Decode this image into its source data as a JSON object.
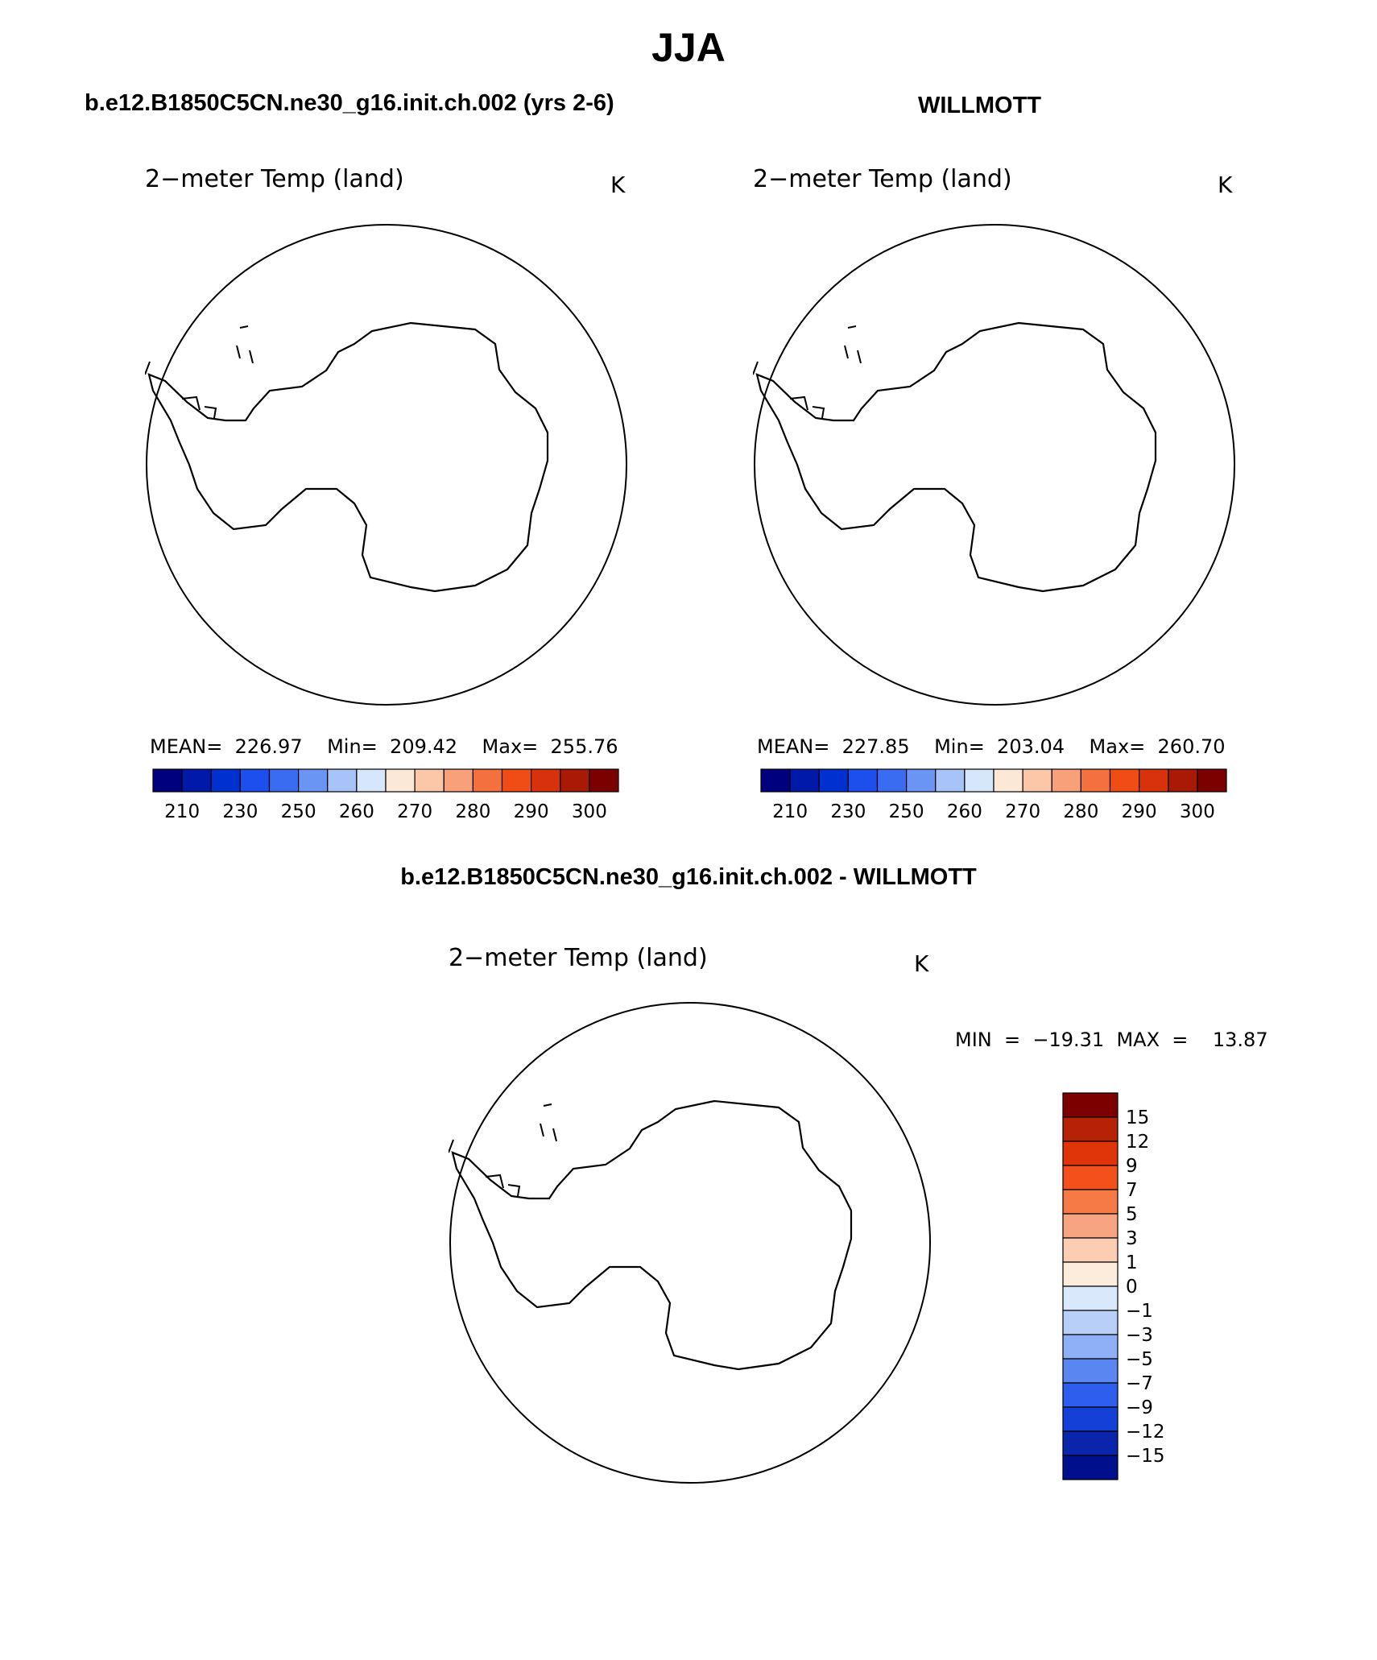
{
  "header": {
    "title": "JJA",
    "case_title": "b.e12.B1850C5CN.ne30_g16.init.ch.002 (yrs 2-6)",
    "obs_title": "WILLMOTT",
    "diff_title": "b.e12.B1850C5CN.ne30_g16.init.ch.002 - WILLMOTT"
  },
  "panels": {
    "model": {
      "plot_title": "2−meter Temp (land)",
      "units": "K",
      "stats": "MEAN=  226.97    Min=  209.42    Max=  255.76"
    },
    "obs": {
      "plot_title": "2−meter Temp (land)",
      "units": "K",
      "stats": "MEAN=  227.85    Min=  203.04    Max=  260.70"
    },
    "diff": {
      "plot_title": "2−meter Temp (land)",
      "units": "K",
      "stats": "MIN  =  −19.31  MAX  =    13.87"
    }
  },
  "colorbars": {
    "abs": {
      "colors": [
        "#00007f",
        "#0019a8",
        "#0030d0",
        "#1c4fec",
        "#3a6cf2",
        "#6b95f5",
        "#a8c3f7",
        "#d6e6fb",
        "#fce8d6",
        "#fbc7a8",
        "#f8a07a",
        "#f5703f",
        "#f04c16",
        "#d8320c",
        "#a81a06",
        "#7c0000"
      ],
      "labels": [
        "210",
        "230",
        "250",
        "260",
        "270",
        "280",
        "290",
        "300"
      ]
    },
    "diff": {
      "colors": [
        "#7c0000",
        "#b52206",
        "#e03509",
        "#f2511c",
        "#f57a45",
        "#f6a580",
        "#fbcdb3",
        "#fdebdc",
        "#d9e8fb",
        "#b8cff8",
        "#8fb0f6",
        "#5a86f2",
        "#2e5eee",
        "#1440d8",
        "#0a24ac",
        "#00108c"
      ],
      "labels": [
        "15",
        "12",
        "9",
        "7",
        "5",
        "3",
        "1",
        "0",
        "−1",
        "−3",
        "−5",
        "−7",
        "−9",
        "−12",
        "−15"
      ]
    }
  }
}
